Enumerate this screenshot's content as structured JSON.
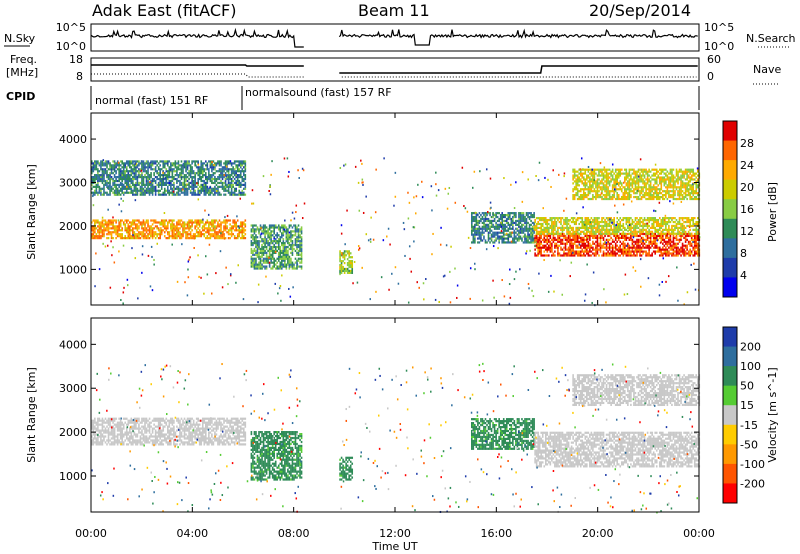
{
  "header": {
    "radar": "Adak East (fitACF)",
    "beam": "Beam 11",
    "date": "20/Sep/2014"
  },
  "noise_panel": {
    "left_label": "N.Sky",
    "right_label": "N.Search",
    "y_ticks": [
      "10^5",
      "10^0"
    ]
  },
  "freq_panel": {
    "left_label_1": "Freq.",
    "left_label_2": "[MHz]",
    "left_ticks": [
      "18",
      "8"
    ],
    "right_label": "Nave",
    "right_ticks": [
      "60",
      "0"
    ]
  },
  "cpid_panel": {
    "label": "CPID",
    "segments": [
      {
        "text": "normal (fast) 151 RF",
        "start_hour": 0.0,
        "end_hour": 6.1
      },
      {
        "text": "normalsound (fast) 157 RF",
        "start_hour": 6.1,
        "end_hour": 24.0
      }
    ]
  },
  "power_panel": {
    "ylabel": "Slant Range [km]",
    "colorbar_label": "Power [dB]",
    "colorbar_ticks": [
      "28",
      "24",
      "20",
      "16",
      "12",
      "8",
      "4"
    ],
    "colorbar_colors": [
      "#e00000",
      "#ff6600",
      "#ffaa00",
      "#cccc00",
      "#88cc44",
      "#2e8b57",
      "#2e6e9e",
      "#1e3caa",
      "#0000ee"
    ]
  },
  "velocity_panel": {
    "ylabel": "Slant Range [km]",
    "colorbar_label": "Velocity [m s^-1]",
    "colorbar_ticks": [
      "200",
      "100",
      "50",
      "15",
      "-15",
      "-50",
      "-100",
      "-200"
    ],
    "colorbar_colors": [
      "#1e3caa",
      "#2e6e9e",
      "#2e8b57",
      "#55cc33",
      "#c8c8c8",
      "#ffcc00",
      "#ff9900",
      "#ff5500",
      "#ff0000"
    ]
  },
  "chart_data": {
    "type": "heatmap",
    "xlabel": "Time UT",
    "x_ticks": [
      "00:00",
      "04:00",
      "08:00",
      "12:00",
      "16:00",
      "20:00",
      "00:00"
    ],
    "x_range_hours": [
      0,
      24
    ],
    "y_ticks": [
      "1000",
      "2000",
      "3000",
      "4000"
    ],
    "y_range_km": [
      180,
      4600
    ],
    "data_gap_hours": [
      [
        8.4,
        9.8
      ]
    ],
    "power_bands": [
      {
        "start_hour": 0.0,
        "end_hour": 6.1,
        "range_km": [
          1700,
          2150
        ],
        "power_db": 24
      },
      {
        "start_hour": 0.0,
        "end_hour": 6.1,
        "range_km": [
          2700,
          3500
        ],
        "power_db": 12
      },
      {
        "start_hour": 6.3,
        "end_hour": 8.3,
        "range_km": [
          1000,
          2000
        ],
        "power_db": 14
      },
      {
        "start_hour": 9.8,
        "end_hour": 10.3,
        "range_km": [
          900,
          1400
        ],
        "power_db": 18
      },
      {
        "start_hour": 15.0,
        "end_hour": 17.5,
        "range_km": [
          1600,
          2300
        ],
        "power_db": 12
      },
      {
        "start_hour": 17.5,
        "end_hour": 24.0,
        "range_km": [
          1300,
          1800
        ],
        "power_db": 28
      },
      {
        "start_hour": 17.5,
        "end_hour": 24.0,
        "range_km": [
          1800,
          2200
        ],
        "power_db": 20
      },
      {
        "start_hour": 19.0,
        "end_hour": 24.0,
        "range_km": [
          2600,
          3300
        ],
        "power_db": 20
      }
    ],
    "velocity_bands": [
      {
        "start_hour": 0.0,
        "end_hour": 6.1,
        "range_km": [
          1700,
          2300
        ],
        "velocity_ms": 0
      },
      {
        "start_hour": 6.3,
        "end_hour": 8.3,
        "range_km": [
          900,
          2000
        ],
        "velocity_ms": 40
      },
      {
        "start_hour": 9.8,
        "end_hour": 10.3,
        "range_km": [
          900,
          1400
        ],
        "velocity_ms": 40
      },
      {
        "start_hour": 15.0,
        "end_hour": 17.5,
        "range_km": [
          1600,
          2300
        ],
        "velocity_ms": 40
      },
      {
        "start_hour": 17.5,
        "end_hour": 24.0,
        "range_km": [
          1200,
          2000
        ],
        "velocity_ms": 0
      },
      {
        "start_hour": 19.0,
        "end_hour": 24.0,
        "range_km": [
          2600,
          3300
        ],
        "velocity_ms": 0
      }
    ]
  }
}
